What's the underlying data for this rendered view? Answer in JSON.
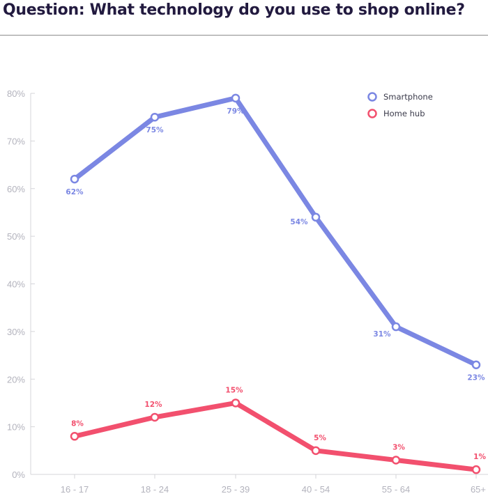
{
  "header": {
    "title": "Question: What technology do you use to shop online?"
  },
  "chart_data": {
    "type": "line",
    "title": "Question: What technology do you use to shop online?",
    "xlabel": "",
    "ylabel": "",
    "categories": [
      "16 - 17",
      "18 - 24",
      "25 - 39",
      "40 - 54",
      "55 - 64",
      "65+"
    ],
    "ylim": [
      0,
      80
    ],
    "yticks": [
      "0%",
      "10%",
      "20%",
      "30%",
      "40%",
      "50%",
      "60%",
      "70%",
      "80%"
    ],
    "grid": false,
    "legend_position": "top-right",
    "series": [
      {
        "name": "Smartphone",
        "color": "#7b87e3",
        "values": [
          62,
          75,
          79,
          54,
          31,
          23
        ],
        "labels": [
          "62%",
          "75%",
          "79%",
          "54%",
          "31%",
          "23%"
        ]
      },
      {
        "name": "Home hub",
        "color": "#f2506e",
        "values": [
          8,
          12,
          15,
          5,
          3,
          1
        ],
        "labels": [
          "8%",
          "12%",
          "15%",
          "5%",
          "3%",
          "1%"
        ]
      }
    ]
  }
}
